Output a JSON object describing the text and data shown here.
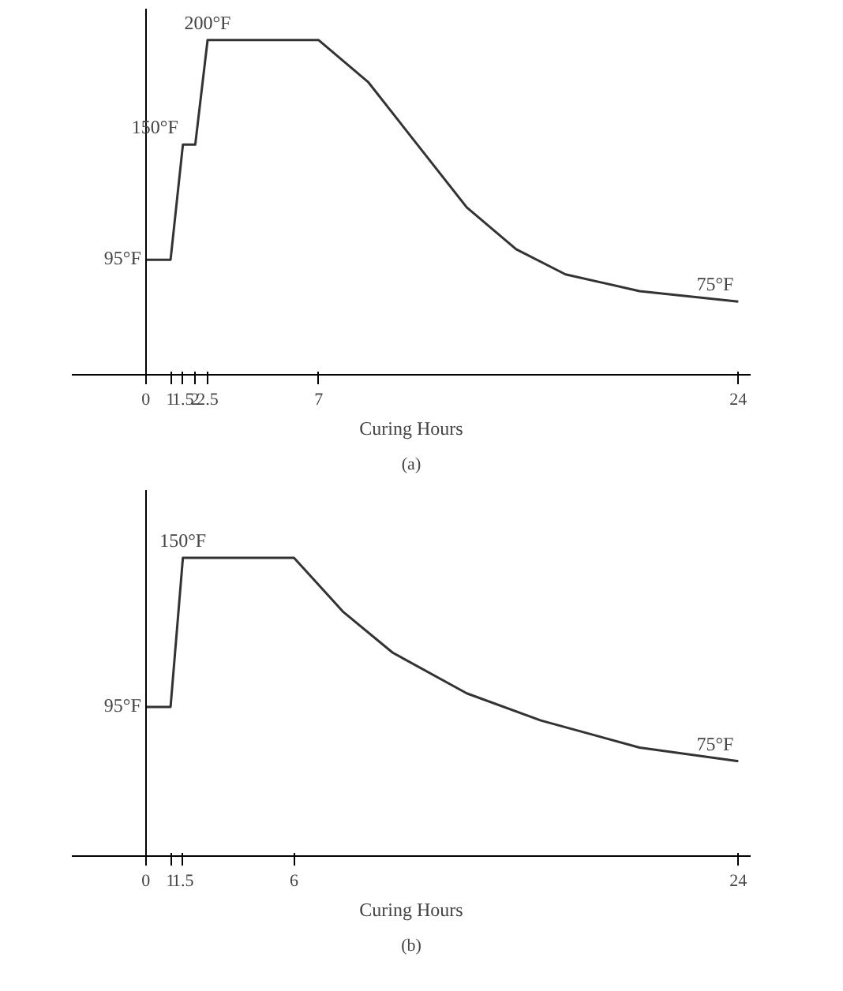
{
  "chart_data": [
    {
      "type": "line",
      "title": "(a)",
      "xlabel": "Curing Hours",
      "tick_labels": "x",
      "x": [
        0,
        1,
        1.5,
        2,
        2.5,
        7,
        9,
        11,
        13,
        15,
        17,
        20,
        24
      ],
      "series": [
        {
          "color": "#333333",
          "values": [
            95,
            95,
            150,
            150,
            200,
            200,
            180,
            150,
            120,
            100,
            88,
            80,
            75
          ],
          "value_labels": [
            "95°F",
            null,
            "150°F",
            null,
            "200°F",
            null,
            null,
            null,
            null,
            null,
            null,
            null,
            "75°F"
          ]
        }
      ],
      "xlim": [
        -3,
        24.5
      ],
      "ylim": [
        40,
        215
      ],
      "xticks": [
        0,
        1,
        1.5,
        2,
        2.5,
        7,
        24
      ]
    },
    {
      "type": "line",
      "title": "(b)",
      "xlabel": "Curing Hours",
      "tick_labels": "x",
      "x": [
        0,
        1,
        1.5,
        6,
        8,
        10,
        13,
        16,
        20,
        24
      ],
      "series": [
        {
          "color": "#333333",
          "values": [
            95,
            95,
            150,
            150,
            130,
            115,
            100,
            90,
            80,
            75
          ],
          "value_labels": [
            "95°F",
            null,
            "150°F",
            null,
            null,
            null,
            null,
            null,
            null,
            "75°F"
          ]
        }
      ],
      "xlim": [
        -3,
        24.5
      ],
      "ylim": [
        40,
        175
      ],
      "xticks": [
        0,
        1,
        1.5,
        6,
        24
      ]
    }
  ]
}
